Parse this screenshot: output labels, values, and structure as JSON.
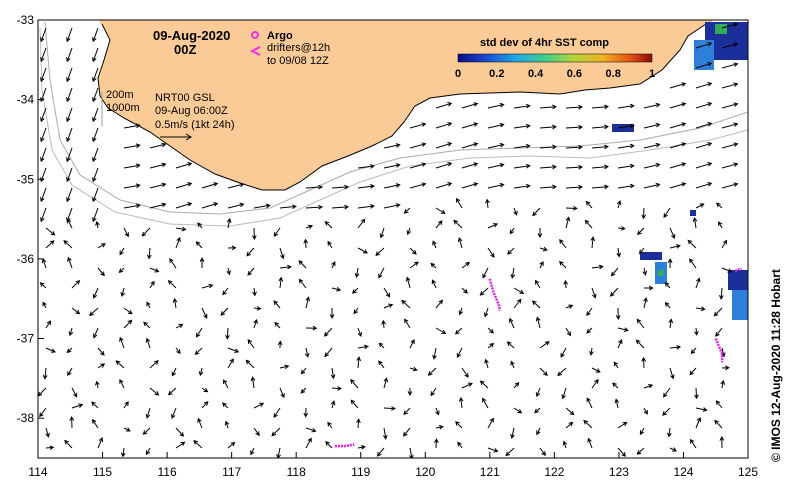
{
  "map": {
    "date": "09-Aug-2020",
    "time": "00Z",
    "argo_label": "Argo",
    "drifters_label": "drifters@12h",
    "drifters_to": "to 09/08 12Z",
    "depth_200": "200m",
    "depth_1000": "1000m",
    "product": "NRT00 GSL",
    "product_time": "09-Aug 06:00Z",
    "scale_text": "0.5m/s (1kt 24h)",
    "credit": "© IMOS 12-Aug-2020 11:28 Hobart",
    "colors": {
      "land": "#fbcb97",
      "argo": "#ee2ee8",
      "drifter": "#e020e0",
      "sst_dark": "#1a2f9a",
      "sst_mid": "#2e7fd9",
      "sst_green": "#33aa55"
    }
  },
  "colorbar": {
    "title": "std dev of 4hr SST comp",
    "ticks": [
      "0",
      "0.2",
      "0.4",
      "0.6",
      "0.8",
      "1"
    ]
  },
  "axes": {
    "x_ticks": [
      "114",
      "115",
      "116",
      "117",
      "118",
      "119",
      "120",
      "121",
      "122",
      "123",
      "124",
      "125"
    ],
    "y_ticks": [
      "-33",
      "-34",
      "-35",
      "-36",
      "-37",
      "-38"
    ]
  },
  "chart_data": {
    "type": "map",
    "region": "Southern Western Australia (Great Australian Bight west)",
    "lon_range": [
      114,
      125
    ],
    "lat_range": [
      -38.5,
      -33
    ],
    "drifter_tracks": [
      {
        "lon": [
          121.0,
          121.05,
          121.1,
          121.15,
          121.15
        ],
        "lat": [
          -36.25,
          -36.4,
          -36.5,
          -36.6,
          -36.65
        ]
      },
      {
        "lon": [
          118.6,
          118.75,
          118.9
        ],
        "lat": [
          -38.35,
          -38.35,
          -38.33
        ]
      },
      {
        "lon": [
          124.5,
          124.55,
          124.6,
          124.6
        ],
        "lat": [
          -37.0,
          -37.1,
          -37.2,
          -37.3
        ]
      },
      {
        "lon": [
          124.8,
          124.9
        ],
        "lat": [
          -36.15,
          -36.12
        ]
      }
    ]
  }
}
